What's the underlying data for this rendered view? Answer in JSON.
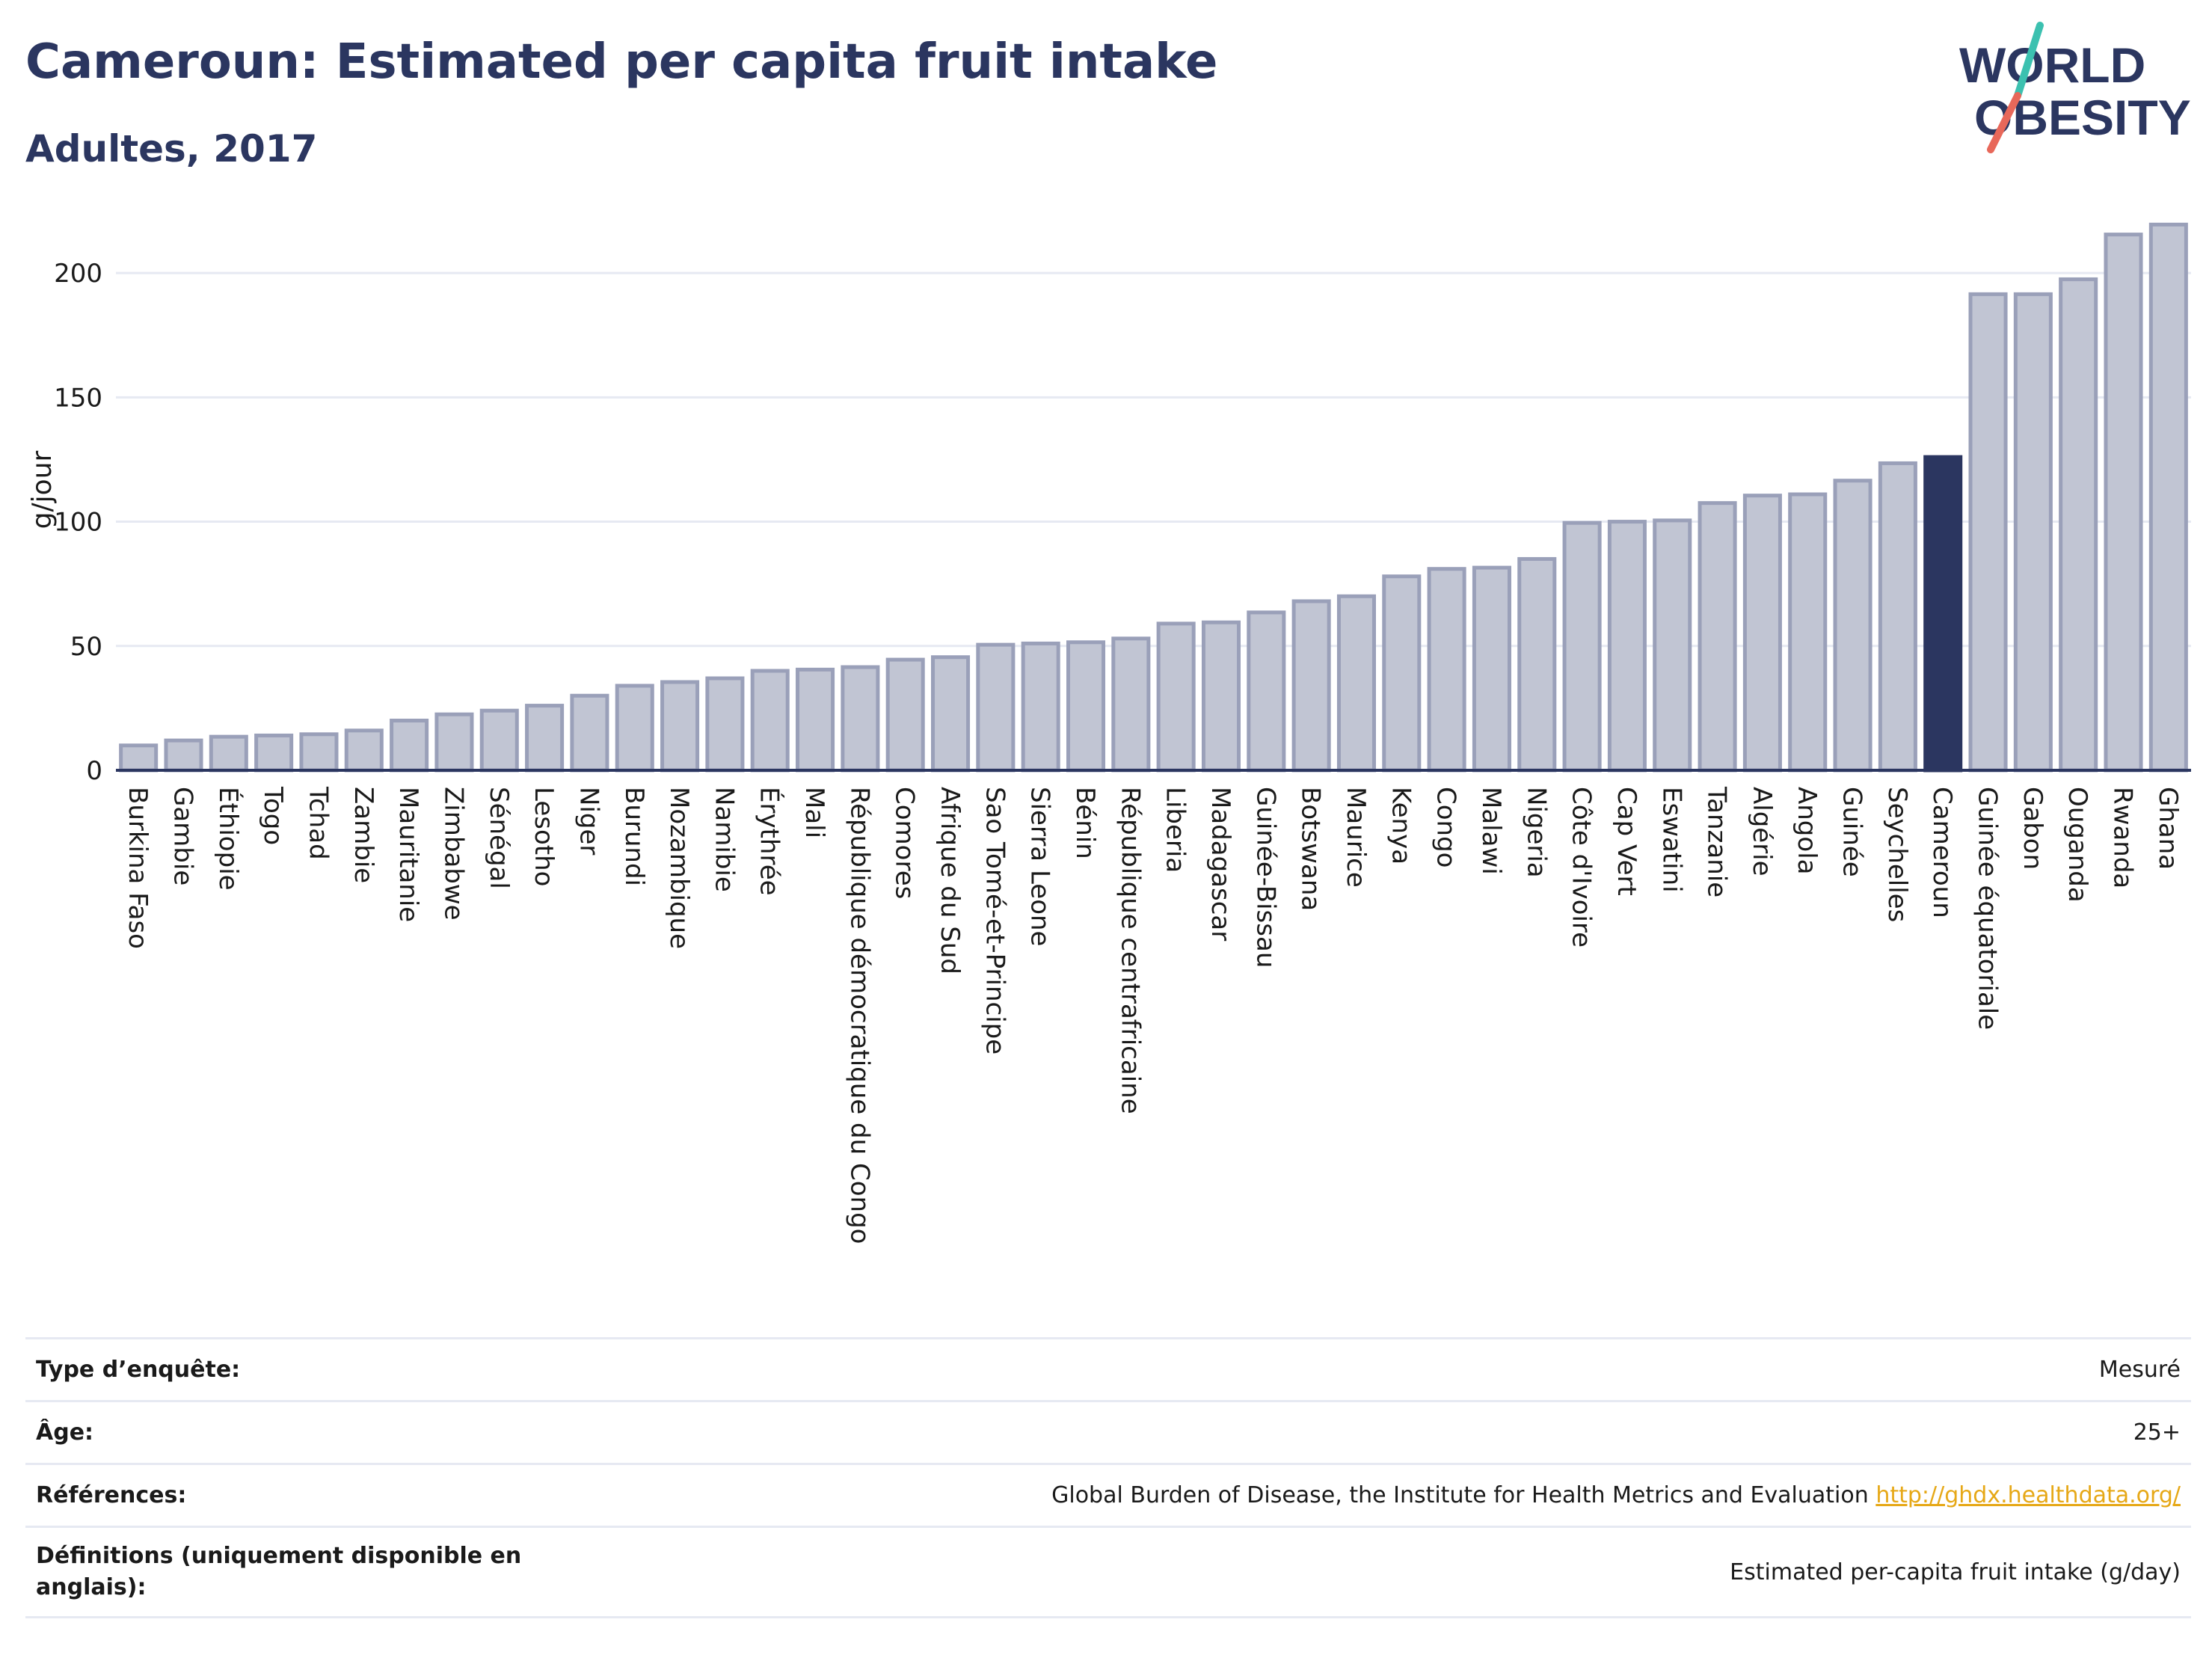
{
  "header": {
    "title": "Cameroun: Estimated per capita fruit intake",
    "subtitle": "Adultes, 2017"
  },
  "logo": {
    "line1": "WORLD",
    "line2": "OBESITY"
  },
  "colors": {
    "bar_fill": "#c1c5d3",
    "bar_stroke": "#9aa0b9",
    "highlight": "#2b3660",
    "title": "#2b3660",
    "grid": "#e6e9f2",
    "link": "#e6a817",
    "logo_teal": "#3cc1b0",
    "logo_coral": "#e8685a"
  },
  "chart_data": {
    "type": "bar",
    "ylabel": "g/jour",
    "xlabel": "",
    "ylim": [
      0,
      225
    ],
    "yticks": [
      0,
      50,
      100,
      150,
      200
    ],
    "grid": true,
    "highlight": "Cameroun",
    "categories": [
      "Burkina Faso",
      "Gambie",
      "Éthiopie",
      "Togo",
      "Tchad",
      "Zambie",
      "Mauritanie",
      "Zimbabwe",
      "Sénégal",
      "Lesotho",
      "Niger",
      "Burundi",
      "Mozambique",
      "Namibie",
      "Érythrée",
      "Mali",
      "République démocratique du Congo",
      "Comores",
      "Afrique du Sud",
      "Sao Tomé-et-Principe",
      "Sierra Leone",
      "Bénin",
      "République centrafricaine",
      "Liberia",
      "Madagascar",
      "Guinée-Bissau",
      "Botswana",
      "Maurice",
      "Kenya",
      "Congo",
      "Malawi",
      "Nigeria",
      "Côte d'Ivoire",
      "Cap Vert",
      "Eswatini",
      "Tanzanie",
      "Algérie",
      "Angola",
      "Guinée",
      "Seychelles",
      "Cameroun",
      "Guinée équatoriale",
      "Gabon",
      "Ouganda",
      "Rwanda",
      "Ghana"
    ],
    "values": [
      10,
      12,
      13.5,
      14,
      14.5,
      16,
      20,
      22.5,
      24,
      26,
      30,
      34,
      35.5,
      37,
      40,
      40.5,
      41.5,
      44.5,
      45.5,
      50.5,
      51,
      51.5,
      53,
      59,
      59.5,
      63.5,
      68,
      70,
      78,
      81,
      81.5,
      85,
      99.5,
      100,
      100.5,
      107.5,
      110.5,
      111,
      116.5,
      123.5,
      126,
      191.5,
      191.5,
      197.5,
      215.5,
      219.5
    ]
  },
  "info": [
    {
      "label": "Type d’enquête:",
      "value": "Mesuré"
    },
    {
      "label": "Âge:",
      "value": "25+"
    },
    {
      "label": "Références:",
      "value": "Global Burden of Disease, the Institute for Health Metrics and Evaluation",
      "link": "http://ghdx.healthdata.org/"
    },
    {
      "label": "Définitions (uniquement disponible en anglais):",
      "value": "Estimated per-capita fruit intake (g/day)"
    }
  ]
}
